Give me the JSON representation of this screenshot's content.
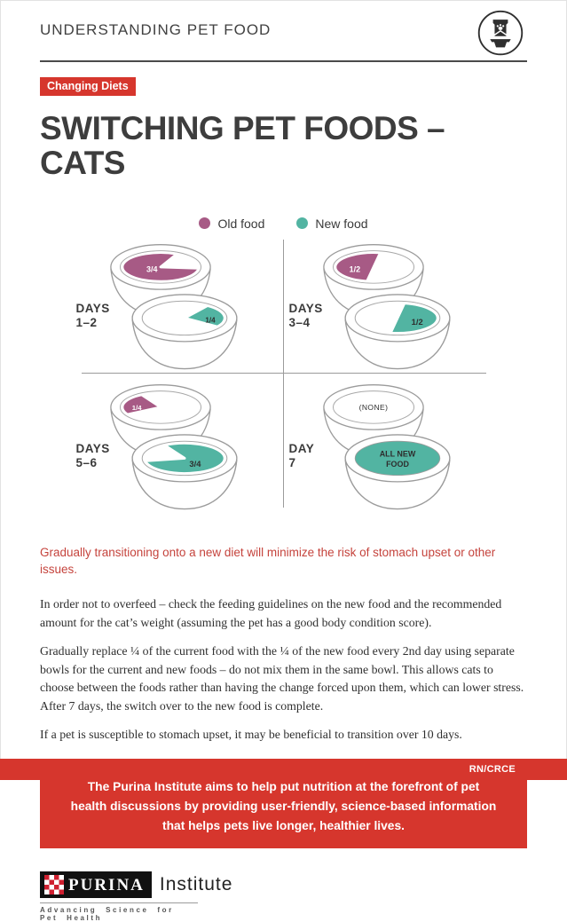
{
  "page": {
    "header_title": "UNDERSTANDING PET FOOD",
    "badge": "Changing Diets",
    "title": "SWITCHING PET FOODS – CATS",
    "footer_code": "RN/CRCE"
  },
  "colors": {
    "old_food": "#a75a85",
    "new_food": "#52b4a2",
    "brand_red": "#d6362d",
    "highlight_red": "#c5433c",
    "dark_text": "#3a3a3a",
    "stroke_gray": "#9b9b9b"
  },
  "legend": [
    {
      "label": "Old food",
      "color_key": "old_food"
    },
    {
      "label": "New food",
      "color_key": "new_food"
    }
  ],
  "diagram": {
    "quadrants": [
      {
        "label_line1": "DAYS",
        "label_line2": "1–2",
        "old_bowl": {
          "slice": "34-notch-right",
          "label": "3/4"
        },
        "new_bowl": {
          "slice": "14-right",
          "label": "1/4"
        }
      },
      {
        "label_line1": "DAYS",
        "label_line2": "3–4",
        "old_bowl": {
          "slice": "12-left",
          "label": "1/2"
        },
        "new_bowl": {
          "slice": "12-right",
          "label": "1/2"
        }
      },
      {
        "label_line1": "DAYS",
        "label_line2": "5–6",
        "old_bowl": {
          "slice": "14-left",
          "label": "1/4"
        },
        "new_bowl": {
          "slice": "34-notch-left",
          "label": "3/4"
        }
      },
      {
        "label_line1": "DAY",
        "label_line2": "7",
        "old_bowl": {
          "slice": "none",
          "label": "(NONE)"
        },
        "new_bowl": {
          "slice": "full",
          "label": "ALL NEW\nFOOD"
        }
      }
    ]
  },
  "highlight": "Gradually transitioning onto a new diet will minimize the risk of stomach upset or other issues.",
  "paragraphs": [
    "In order not to overfeed – check the feeding guidelines on the new food and the recommended amount for the cat’s weight (assuming the pet has a good body condition score).",
    "Gradually replace ¼ of the current food with the ¼ of the new food every 2nd day using separate bowls for the current and new foods – do not mix them in the same bowl. This allows cats to choose between the foods rather than having the change forced upon them, which can lower stress. After 7 days, the switch over to the new food is complete.",
    "If a pet is susceptible to stomach upset, it may be beneficial to transition over 10 days."
  ],
  "callout": "The Purina Institute aims to help put nutrition at the forefront of pet health discussions by providing user-friendly, science-based information that helps pets live longer, healthier lives.",
  "logo": {
    "brand": "PURINA",
    "suffix": "Institute",
    "tagline": "Advancing Science for Pet Health"
  }
}
